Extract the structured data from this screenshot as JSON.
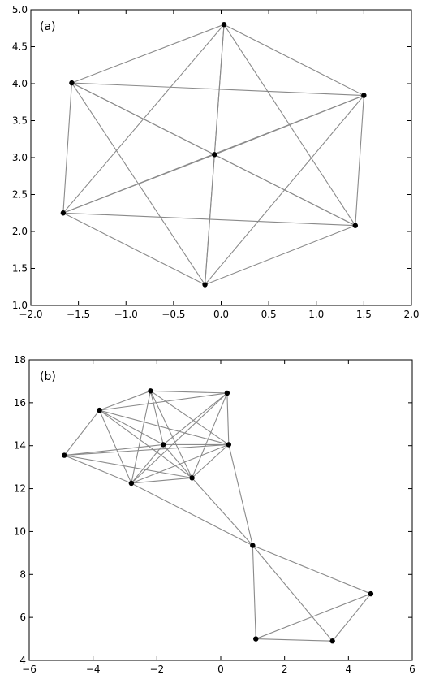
{
  "chart_data": [
    {
      "type": "scatter",
      "panel_label": "(a)",
      "xlim": [
        -2.0,
        2.0
      ],
      "ylim": [
        1.0,
        5.0
      ],
      "x_ticks": [
        -2.0,
        -1.5,
        -1.0,
        -0.5,
        0.0,
        0.5,
        1.0,
        1.5,
        2.0
      ],
      "y_ticks": [
        1.0,
        1.5,
        2.0,
        2.5,
        3.0,
        3.5,
        4.0,
        4.5,
        5.0
      ],
      "x_tick_labels": [
        "−2.0",
        "−1.5",
        "−1.0",
        "−0.5",
        "0.0",
        "0.5",
        "1.0",
        "1.5",
        "2.0"
      ],
      "y_tick_labels": [
        "1.0",
        "1.5",
        "2.0",
        "2.5",
        "3.0",
        "3.5",
        "4.0",
        "4.5",
        "5.0"
      ],
      "grid": false,
      "nodes": [
        {
          "x": 0.03,
          "y": 4.8
        },
        {
          "x": -1.57,
          "y": 4.01
        },
        {
          "x": 1.5,
          "y": 3.84
        },
        {
          "x": -0.07,
          "y": 3.04
        },
        {
          "x": -1.66,
          "y": 2.25
        },
        {
          "x": 1.41,
          "y": 2.08
        },
        {
          "x": -0.17,
          "y": 1.28
        }
      ],
      "edges": [
        [
          0,
          1
        ],
        [
          0,
          2
        ],
        [
          0,
          4
        ],
        [
          0,
          5
        ],
        [
          0,
          3
        ],
        [
          0,
          6
        ],
        [
          1,
          2
        ],
        [
          1,
          4
        ],
        [
          1,
          3
        ],
        [
          1,
          5
        ],
        [
          1,
          6
        ],
        [
          2,
          3
        ],
        [
          2,
          4
        ],
        [
          2,
          5
        ],
        [
          2,
          6
        ],
        [
          4,
          3
        ],
        [
          4,
          5
        ],
        [
          4,
          6
        ],
        [
          5,
          3
        ],
        [
          5,
          6
        ],
        [
          3,
          6
        ]
      ]
    },
    {
      "type": "scatter",
      "panel_label": "(b)",
      "xlim": [
        -6,
        6
      ],
      "ylim": [
        4,
        18
      ],
      "x_ticks": [
        -6,
        -4,
        -2,
        0,
        2,
        4,
        6
      ],
      "y_ticks": [
        4,
        6,
        8,
        10,
        12,
        14,
        16,
        18
      ],
      "x_tick_labels": [
        "−6",
        "−4",
        "−2",
        "0",
        "2",
        "4",
        "6"
      ],
      "y_tick_labels": [
        "4",
        "6",
        "8",
        "10",
        "12",
        "14",
        "16",
        "18"
      ],
      "grid": false,
      "nodes": [
        {
          "x": -2.2,
          "y": 16.55
        },
        {
          "x": 0.2,
          "y": 16.45
        },
        {
          "x": -3.8,
          "y": 15.65
        },
        {
          "x": -1.8,
          "y": 14.05
        },
        {
          "x": 0.25,
          "y": 14.05
        },
        {
          "x": -4.9,
          "y": 13.55
        },
        {
          "x": -2.8,
          "y": 12.25
        },
        {
          "x": -0.9,
          "y": 12.5
        },
        {
          "x": 1.0,
          "y": 9.35
        },
        {
          "x": 4.7,
          "y": 7.1
        },
        {
          "x": 1.1,
          "y": 5.0
        },
        {
          "x": 3.5,
          "y": 4.9
        }
      ],
      "edges": [
        [
          0,
          1
        ],
        [
          0,
          2
        ],
        [
          0,
          3
        ],
        [
          0,
          4
        ],
        [
          0,
          6
        ],
        [
          0,
          7
        ],
        [
          1,
          2
        ],
        [
          1,
          3
        ],
        [
          1,
          4
        ],
        [
          1,
          6
        ],
        [
          1,
          7
        ],
        [
          2,
          3
        ],
        [
          2,
          4
        ],
        [
          2,
          5
        ],
        [
          2,
          6
        ],
        [
          2,
          7
        ],
        [
          3,
          4
        ],
        [
          3,
          5
        ],
        [
          3,
          6
        ],
        [
          3,
          7
        ],
        [
          4,
          5
        ],
        [
          4,
          6
        ],
        [
          4,
          7
        ],
        [
          4,
          8
        ],
        [
          5,
          6
        ],
        [
          5,
          7
        ],
        [
          6,
          7
        ],
        [
          6,
          8
        ],
        [
          7,
          8
        ],
        [
          8,
          9
        ],
        [
          8,
          10
        ],
        [
          8,
          11
        ],
        [
          9,
          10
        ],
        [
          9,
          11
        ],
        [
          10,
          11
        ]
      ]
    }
  ]
}
